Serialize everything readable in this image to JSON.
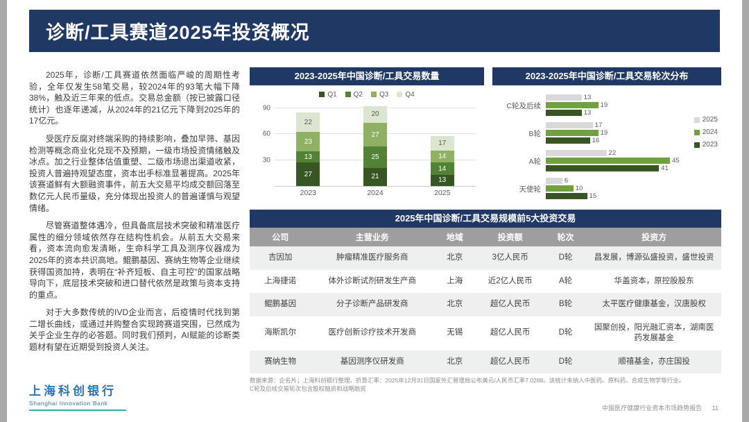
{
  "page": {
    "title": "诊断/工具赛道2025年投资概况",
    "footer_left": {
      "logo_cn": "上海科创银行",
      "logo_en": "Shanghai Innovation Bank"
    },
    "footer_right": {
      "report": "中国医疗健康行业资本市场趋势报告",
      "page_no": "11"
    }
  },
  "left_text": {
    "paragraphs": [
      "2025年，诊断/工具赛道依然面临严峻的周期性考验，全年仅发生58笔交易，较2024年的93笔大幅下降38%，触及近三年来的低点。交易总金额（按已披露口径统计）也逐年递减，从2024年的21亿元下降到2025年的17亿元。",
      "受医疗反腐对终端采购的持续影响，叠加早筛、基因检测等概念商业化兑现不及预期，一级市场投资情绪触及冰点。加之行业整体估值重塑、二级市场退出渠道收紧，投资人普遍持观望态度，资本出手标准显著提高。2025年该赛道鲜有大额融资事件，前五大交易平均成交额回落至数亿元人民币量级，充分体现出投资人的普遍谨慎与观望情绪。",
      "尽管赛道整体遇冷，但具备底层技术突破和精准医疗属性的细分领域依然存在结构性机会。从前五大交易来看，资本流向愈发清晰，生命科学工具及测序仪器成为2025年的资本共识高地。鲲鹏基因、赛纳生物等企业继续获得国资加持，表明在“补齐短板、自主可控”的国家战略导向下，底层技术突破和进口替代依然是政策与资本支持的重点。",
      "对于大多数传统的IVD企业而言，后疫情时代找到第二增长曲线，或通过并购整合实现跨赛道突围，已然成为关乎企业生存的必答题。同时我们预判，AI赋能的诊断类题材有望在近期受到投资人关注。"
    ]
  },
  "chart_data": [
    {
      "type": "bar",
      "stacked": true,
      "title": "2023-2025年中国诊断/工具交易数量",
      "categories": [
        "2023",
        "2024",
        "2025"
      ],
      "series": [
        {
          "name": "Q1",
          "color": "#375623",
          "label_color": "#ffffff",
          "values": [
            27,
            21,
            13
          ]
        },
        {
          "name": "Q2",
          "color": "#538135",
          "label_color": "#ffffff",
          "values": [
            13,
            25,
            14
          ]
        },
        {
          "name": "Q3",
          "color": "#8fb164",
          "label_color": "#ffffff",
          "values": [
            23,
            27,
            14
          ]
        },
        {
          "name": "Q4",
          "color": "#dbe5cf",
          "label_color": "#595959",
          "values": [
            22,
            20,
            17
          ]
        }
      ],
      "totals": [
        85,
        93,
        58
      ],
      "y_ticks": [
        30,
        60,
        90
      ],
      "y_max": 95,
      "legend_position": "top"
    },
    {
      "type": "bar-horizontal",
      "grouped": true,
      "title": "2023-2025年中国诊断/工具交易轮次分布",
      "categories": [
        "C轮及后续",
        "B轮",
        "A轮",
        "天使轮"
      ],
      "series": [
        {
          "name": "2025",
          "color": "#d9d9d9",
          "values": [
            13,
            17,
            22,
            6
          ]
        },
        {
          "name": "2024",
          "color": "#6fa13d",
          "values": [
            19,
            19,
            45,
            10
          ]
        },
        {
          "name": "2023",
          "color": "#375623",
          "values": [
            13,
            16,
            41,
            15
          ]
        }
      ],
      "x_max": 50,
      "legend_position": "right"
    }
  ],
  "table": {
    "title": "2025年中国诊断/工具交易规模前5大投资交易",
    "columns": [
      "公司",
      "主营业务",
      "地域",
      "投资额",
      "轮次",
      "投资方"
    ],
    "rows": [
      [
        "吉因加",
        "肿瘤精准医疗服务商",
        "北京",
        "3亿人民币",
        "D轮",
        "昌发展，博源弘盛投资，盛世投资"
      ],
      [
        "上海捷诺",
        "体外诊断试剂研发生产商",
        "上海",
        "近2亿人民币",
        "A轮",
        "华盖资本，原控股股东"
      ],
      [
        "鲲鹏基因",
        "分子诊断产品研发商",
        "北京",
        "超亿人民币",
        "B轮",
        "太平医疗健康基金，汉唐股权"
      ],
      [
        "海斯凯尔",
        "医疗创新诊疗技术开发商",
        "无锡",
        "超亿人民币",
        "D轮",
        "国聚创投，阳光融汇资本，湖南医药发展基金"
      ],
      [
        "赛纳生物",
        "基因测序仪研发商",
        "北京",
        "超亿人民币",
        "D轮",
        "顺禧基金，亦庄国投"
      ]
    ],
    "footnotes": [
      "数据来源：企名片；上海科创银行整理。折算汇率：2025年12月31日国家外汇管理局公布美元/人民币汇率7.0288。该统计未纳入中医药、原料药、合成生物学等行业。",
      "C轮及后续交易轮次包含股权融资和战略融资"
    ]
  },
  "colors": {
    "header_bg": "#203864",
    "accent_teal": "#2fb0a4",
    "logo_blue": "#2e74b5",
    "row_alt": "#eef0f0"
  }
}
